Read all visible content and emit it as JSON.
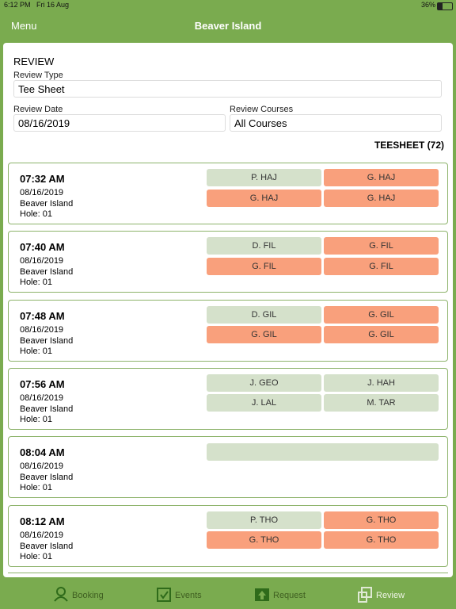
{
  "status_bar": {
    "time": "6:12 PM",
    "date": "Fri 16 Aug",
    "battery": "36%"
  },
  "nav": {
    "menu": "Menu",
    "title": "Beaver Island"
  },
  "form": {
    "heading": "REVIEW",
    "review_type_label": "Review Type",
    "review_type": "Tee Sheet",
    "review_date_label": "Review Date",
    "review_date": "08/16/2019",
    "review_courses_label": "Review Courses",
    "review_courses": "All Courses",
    "count_label": "TEESHEET (72)"
  },
  "slot_colors": {
    "green": "#d5e1cb",
    "orange": "#f9a07c"
  },
  "cards": [
    {
      "time": "07:32 AM",
      "date": "08/16/2019",
      "course": "Beaver Island",
      "hole": "Hole: 01",
      "slots": [
        {
          "name": "P. HAJ",
          "color": "green"
        },
        {
          "name": "G. HAJ",
          "color": "orange"
        },
        {
          "name": "G. HAJ",
          "color": "orange"
        },
        {
          "name": "G. HAJ",
          "color": "orange"
        }
      ]
    },
    {
      "time": "07:40 AM",
      "date": "08/16/2019",
      "course": "Beaver Island",
      "hole": "Hole: 01",
      "slots": [
        {
          "name": "D. FIL",
          "color": "green"
        },
        {
          "name": "G. FIL",
          "color": "orange"
        },
        {
          "name": "G. FIL",
          "color": "orange"
        },
        {
          "name": "G. FIL",
          "color": "orange"
        }
      ]
    },
    {
      "time": "07:48 AM",
      "date": "08/16/2019",
      "course": "Beaver Island",
      "hole": "Hole: 01",
      "slots": [
        {
          "name": "D. GIL",
          "color": "green"
        },
        {
          "name": "G. GIL",
          "color": "orange"
        },
        {
          "name": "G. GIL",
          "color": "orange"
        },
        {
          "name": "G. GIL",
          "color": "orange"
        }
      ]
    },
    {
      "time": "07:56 AM",
      "date": "08/16/2019",
      "course": "Beaver Island",
      "hole": "Hole: 01",
      "slots": [
        {
          "name": "J. GEO",
          "color": "green"
        },
        {
          "name": "J. HAH",
          "color": "green"
        },
        {
          "name": "J. LAL",
          "color": "green"
        },
        {
          "name": "M. TAR",
          "color": "green"
        }
      ]
    },
    {
      "time": "08:04 AM",
      "date": "08/16/2019",
      "course": "Beaver Island",
      "hole": "Hole: 01",
      "slots": []
    },
    {
      "time": "08:12 AM",
      "date": "08/16/2019",
      "course": "Beaver Island",
      "hole": "Hole: 01",
      "slots": [
        {
          "name": "P. THO",
          "color": "green"
        },
        {
          "name": "G. THO",
          "color": "orange"
        },
        {
          "name": "G. THO",
          "color": "orange"
        },
        {
          "name": "G. THO",
          "color": "orange"
        }
      ]
    }
  ],
  "tabs": [
    "Booking",
    "Events",
    "Request",
    "Review"
  ]
}
